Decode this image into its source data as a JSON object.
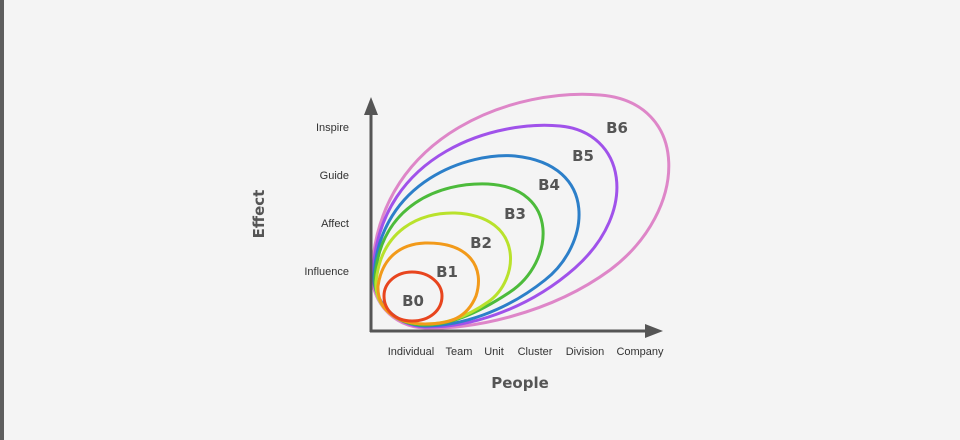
{
  "diagram": {
    "y_axis_title": "Effect",
    "x_axis_title": "People",
    "y_levels": [
      "Influence",
      "Affect",
      "Guide",
      "Inspire"
    ],
    "x_levels": [
      "Individual",
      "Team",
      "Unit",
      "Cluster",
      "Division",
      "Company"
    ],
    "bands": [
      {
        "label": "B0",
        "color": "#e8451e"
      },
      {
        "label": "B1",
        "color": "#f29a1a"
      },
      {
        "label": "B2",
        "color": "#b9e22c"
      },
      {
        "label": "B3",
        "color": "#4cbb3b"
      },
      {
        "label": "B4",
        "color": "#2c7fc9"
      },
      {
        "label": "B5",
        "color": "#a052ea"
      },
      {
        "label": "B6",
        "color": "#de86c8"
      }
    ],
    "axis_color": "#555555"
  }
}
